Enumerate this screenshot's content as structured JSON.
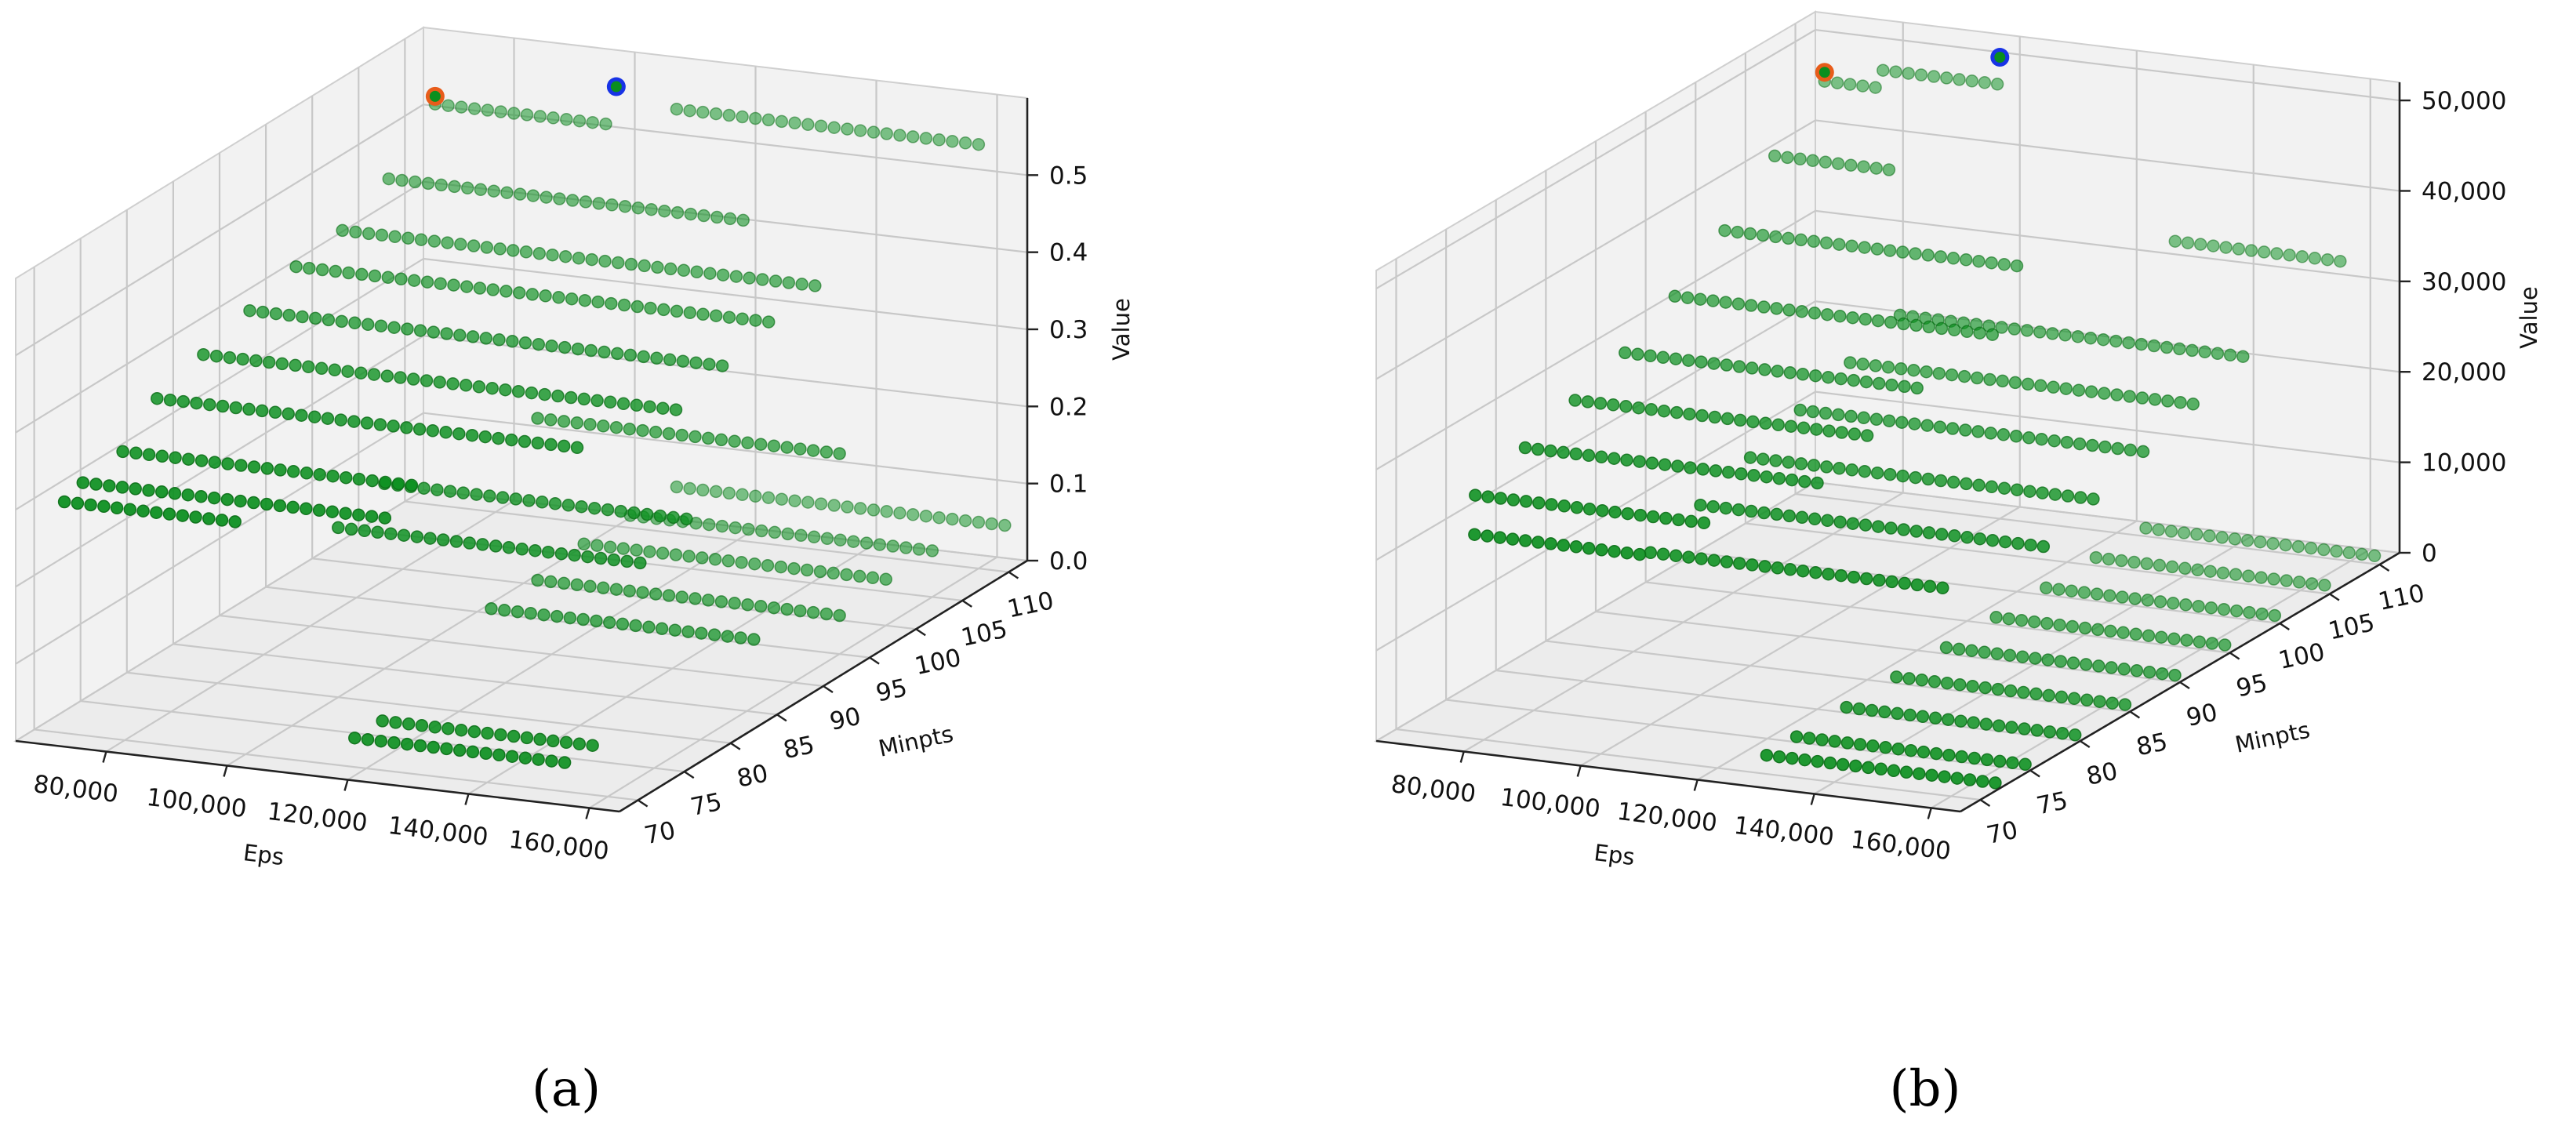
{
  "colors": {
    "point": "#0a8f1e",
    "point_edge": "#0b6e17",
    "marker_orange": "#e85c1a",
    "marker_blue": "#1833e6",
    "pane": "#f2f2f2",
    "grid": "#c8c8c8"
  },
  "chart_data": [
    {
      "type": "scatter",
      "panel_label": "(a)",
      "xlabel": "Eps",
      "ylabel": "Minpts",
      "zlabel": "Value",
      "xlim": [
        65000,
        165000
      ],
      "ylim": [
        68,
        112
      ],
      "zlim": [
        0,
        0.6
      ],
      "x_ticks": [
        "80,000",
        "100,000",
        "120,000",
        "140,000",
        "160,000"
      ],
      "x_tick_values": [
        80000,
        100000,
        120000,
        140000,
        160000
      ],
      "y_ticks": [
        "70",
        "75",
        "80",
        "85",
        "90",
        "95",
        "100",
        "105",
        "110"
      ],
      "y_tick_values": [
        70,
        75,
        80,
        85,
        90,
        95,
        100,
        105,
        110
      ],
      "z_ticks": [
        "0.0",
        "0.1",
        "0.2",
        "0.3",
        "0.4",
        "0.5"
      ],
      "z_tick_values": [
        0.0,
        0.1,
        0.2,
        0.3,
        0.4,
        0.5
      ],
      "grid": true,
      "series": [
        {
          "rows": [
            {
              "eps": [
                110000,
                160000
              ],
              "minpts": 110,
              "value": 0.55
            },
            {
              "eps": [
                70000,
                100000
              ],
              "minpts": 110,
              "value": 0.52
            },
            {
              "eps": [
                70000,
                130000
              ],
              "minpts": 105,
              "value": 0.46
            },
            {
              "eps": [
                70000,
                150000
              ],
              "minpts": 100,
              "value": 0.43
            },
            {
              "eps": [
                70000,
                150000
              ],
              "minpts": 95,
              "value": 0.42
            },
            {
              "eps": [
                70000,
                150000
              ],
              "minpts": 90,
              "value": 0.4
            },
            {
              "eps": [
                70000,
                150000
              ],
              "minpts": 85,
              "value": 0.38
            },
            {
              "eps": [
                70000,
                140000
              ],
              "minpts": 80,
              "value": 0.36
            },
            {
              "eps": [
                72000,
                120000
              ],
              "minpts": 75,
              "value": 0.33
            },
            {
              "eps": [
                70000,
                120000
              ],
              "minpts": 72,
              "value": 0.31
            },
            {
              "eps": [
                70000,
                100000
              ],
              "minpts": 70,
              "value": 0.3
            },
            {
              "eps": [
                110000,
                160000
              ],
              "minpts": 95,
              "value": 0.26
            },
            {
              "eps": [
                100000,
                150000
              ],
              "minpts": 85,
              "value": 0.24
            },
            {
              "eps": [
                100000,
                150000
              ],
              "minpts": 80,
              "value": 0.22
            },
            {
              "eps": [
                110000,
                165000
              ],
              "minpts": 110,
              "value": 0.06
            },
            {
              "eps": [
                110000,
                160000
              ],
              "minpts": 105,
              "value": 0.06
            },
            {
              "eps": [
                110000,
                160000
              ],
              "minpts": 100,
              "value": 0.06
            },
            {
              "eps": [
                110000,
                160000
              ],
              "minpts": 95,
              "value": 0.05
            },
            {
              "eps": [
                110000,
                155000
              ],
              "minpts": 90,
              "value": 0.05
            },
            {
              "eps": [
                115000,
                150000
              ],
              "minpts": 75,
              "value": 0.02
            },
            {
              "eps": [
                115000,
                150000
              ],
              "minpts": 72,
              "value": 0.02
            }
          ]
        }
      ],
      "highlights": [
        {
          "color": "orange",
          "eps": 70000,
          "minpts": 110,
          "value": 0.53
        },
        {
          "color": "blue",
          "eps": 100000,
          "minpts": 110,
          "value": 0.57
        }
      ]
    },
    {
      "type": "scatter",
      "panel_label": "(b)",
      "xlabel": "Eps",
      "ylabel": "Minpts",
      "zlabel": "Value",
      "xlim": [
        65000,
        165000
      ],
      "ylim": [
        68,
        112
      ],
      "zlim": [
        0,
        52000
      ],
      "x_ticks": [
        "80,000",
        "100,000",
        "120,000",
        "140,000",
        "160,000"
      ],
      "x_tick_values": [
        80000,
        100000,
        120000,
        140000,
        160000
      ],
      "y_ticks": [
        "70",
        "75",
        "80",
        "85",
        "90",
        "95",
        "100",
        "105",
        "110"
      ],
      "y_tick_values": [
        70,
        75,
        80,
        85,
        90,
        95,
        100,
        105,
        110
      ],
      "z_ticks": [
        "0",
        "10,000",
        "20,000",
        "30,000",
        "40,000",
        "50,000"
      ],
      "z_tick_values": [
        0,
        10000,
        20000,
        30000,
        40000,
        50000
      ],
      "grid": true,
      "series": [
        {
          "rows": [
            {
              "eps": [
                80000,
                100000
              ],
              "minpts": 110,
              "value": 48000
            },
            {
              "eps": [
                70000,
                80000
              ],
              "minpts": 110,
              "value": 46000
            },
            {
              "eps": [
                70000,
                90000
              ],
              "minpts": 105,
              "value": 41000
            },
            {
              "eps": [
                70000,
                120000
              ],
              "minpts": 100,
              "value": 36000
            },
            {
              "eps": [
                70000,
                125000
              ],
              "minpts": 95,
              "value": 32000
            },
            {
              "eps": [
                70000,
                120000
              ],
              "minpts": 90,
              "value": 29000
            },
            {
              "eps": [
                70000,
                120000
              ],
              "minpts": 85,
              "value": 27000
            },
            {
              "eps": [
                70000,
                120000
              ],
              "minpts": 80,
              "value": 25000
            },
            {
              "eps": [
                70000,
                110000
              ],
              "minpts": 75,
              "value": 23000
            },
            {
              "eps": [
                75000,
                105000
              ],
              "minpts": 72,
              "value": 21000
            },
            {
              "eps": [
                130000,
                160000
              ],
              "minpts": 110,
              "value": 33000
            },
            {
              "eps": [
                100000,
                160000
              ],
              "minpts": 100,
              "value": 29000
            },
            {
              "eps": [
                100000,
                160000
              ],
              "minpts": 95,
              "value": 27000
            },
            {
              "eps": [
                100000,
                160000
              ],
              "minpts": 90,
              "value": 25000
            },
            {
              "eps": [
                100000,
                160000
              ],
              "minpts": 85,
              "value": 23000
            },
            {
              "eps": [
                100000,
                160000
              ],
              "minpts": 80,
              "value": 21000
            },
            {
              "eps": [
                100000,
                150000
              ],
              "minpts": 75,
              "value": 19000
            },
            {
              "eps": [
                125000,
                165000
              ],
              "minpts": 110,
              "value": 900
            },
            {
              "eps": [
                125000,
                165000
              ],
              "minpts": 105,
              "value": 900
            },
            {
              "eps": [
                125000,
                165000
              ],
              "minpts": 100,
              "value": 800
            },
            {
              "eps": [
                125000,
                165000
              ],
              "minpts": 95,
              "value": 800
            },
            {
              "eps": [
                125000,
                165000
              ],
              "minpts": 90,
              "value": 700
            },
            {
              "eps": [
                125000,
                165000
              ],
              "minpts": 85,
              "value": 700
            },
            {
              "eps": [
                125000,
                165000
              ],
              "minpts": 80,
              "value": 600
            },
            {
              "eps": [
                125000,
                165000
              ],
              "minpts": 75,
              "value": 600
            },
            {
              "eps": [
                125000,
                165000
              ],
              "minpts": 72,
              "value": 500
            }
          ]
        }
      ],
      "highlights": [
        {
          "color": "orange",
          "eps": 70000,
          "minpts": 110,
          "value": 47000
        },
        {
          "color": "blue",
          "eps": 100000,
          "minpts": 110,
          "value": 51000
        }
      ]
    }
  ]
}
